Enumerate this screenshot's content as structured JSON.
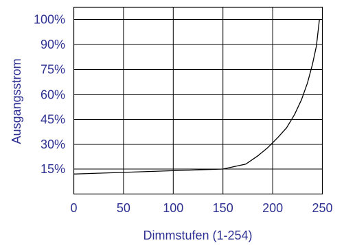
{
  "chart_data": {
    "type": "line",
    "xlabel": "Dimmstufen (1-254)",
    "ylabel": "Ausgangsstrom",
    "x_ticks": [
      "0",
      "50",
      "100",
      "150",
      "200",
      "250"
    ],
    "y_ticks": [
      "15%",
      "30%",
      "45%",
      "60%",
      "75%",
      "90%",
      "100%"
    ],
    "x_tick_values": [
      0,
      50,
      100,
      150,
      200,
      250
    ],
    "y_tick_values": [
      15,
      30,
      45,
      60,
      75,
      90,
      100
    ],
    "xlim": [
      0,
      250
    ],
    "y_range": [
      0,
      100
    ],
    "grid": true,
    "series": [
      {
        "color": "#000000",
        "points": [
          [
            0,
            12
          ],
          [
            50,
            13
          ],
          [
            100,
            14
          ],
          [
            150,
            15
          ],
          [
            173,
            18
          ],
          [
            185,
            23
          ],
          [
            195,
            28
          ],
          [
            205,
            34
          ],
          [
            214,
            40
          ],
          [
            222,
            48
          ],
          [
            229,
            57
          ],
          [
            235,
            67
          ],
          [
            240,
            78
          ],
          [
            244,
            89
          ],
          [
            247,
            100
          ]
        ]
      }
    ]
  }
}
